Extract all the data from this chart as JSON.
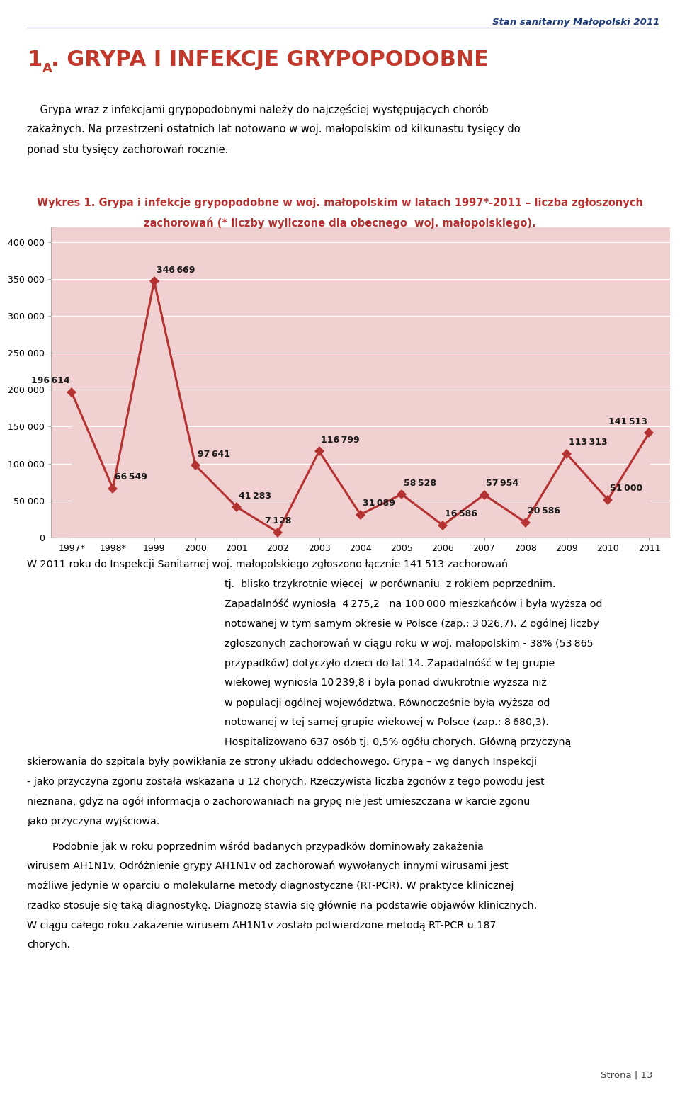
{
  "years": [
    "1997*",
    "1998*",
    "1999",
    "2000",
    "2001",
    "2002",
    "2003",
    "2004",
    "2005",
    "2006",
    "2007",
    "2008",
    "2009",
    "2010",
    "2011"
  ],
  "values": [
    196614,
    66549,
    346669,
    97641,
    41283,
    7128,
    116799,
    31089,
    58528,
    16586,
    57954,
    20586,
    113313,
    51000,
    141513
  ],
  "line_color": "#b53232",
  "marker_color": "#b53232",
  "fill_color": "#f0d0d0",
  "title_line1": "Wykres 1. Grypa i infekcje grypopodobne w woj. małopolskim w latach 1997*-2011 – liczba zgłoszonych",
  "title_line2": "zachorowań (* liczby wyliczone dla obecnego  woj. małopolskiego).",
  "title_color": "#b53232",
  "title_fontsize": 10.5,
  "header_text": "Stan sanitarny Małopolski 2011",
  "heading1": "1",
  "heading1_sub": "A",
  "heading2": ". GRYPA I INFEKCJE GRYPOPODOBNE",
  "heading_color": "#c0392b",
  "heading_fontsize": 22,
  "body_text1": "    Grypa wraz z infekcjami grypopodobnymi należy do najczęściej występujących chorób\nzakażnych. Na przestrzeni ostatnich lat notowano w woj. małopolskim od kilkunastu tysięcy do\nponad stu tysięcy zachorowań rocznie.",
  "ytick_vals": [
    0,
    50000,
    100000,
    150000,
    200000,
    250000,
    300000,
    350000,
    400000
  ],
  "ytick_labels": [
    "0",
    "50 000",
    "100 000",
    "150 000",
    "200 000",
    "250 000",
    "300 000",
    "350 000",
    "400 000"
  ],
  "label_fontsize": 9.0,
  "axis_label_fontsize": 9.0,
  "label_color": "#1a1a1a",
  "body_text2": "W 2011 roku do Inspekcji Sanitarnej woj. małopolskiego zgłoszono łącznie 141 513 zachorowań\ntj. blisko trzykrotnie więcej w porównaniu z rokiem poprzednim.\nZapadalnóść wyniosła 4 275,2  na 100 000 mieszkańców i była wyższa od\nnotowanej w tym samym okresie w Polsce (zap.: 3 026,7). Z ogólnej liczby\nzgłoszonych zachorowań w ciągu roku w woj. małopolskim - 38% (53 865\nprzypadków) dotyczyło dzieci do lat 14. Zapadalnóść w tej grupie\nwiekowej wyniosła 10 239,8 i była ponad dwukrotnie wyższa niż\nw populacji ogólnej województwa. Równocześnie była wyższa od\nnotowanej w tej samej grupie wiekowej w Polsce (zap.: 8 680,3).\nHospitalizowano 637 osób tj. 0,5% ogółu chorych. Główną przyczyną",
  "page_num": "Strona | 13"
}
